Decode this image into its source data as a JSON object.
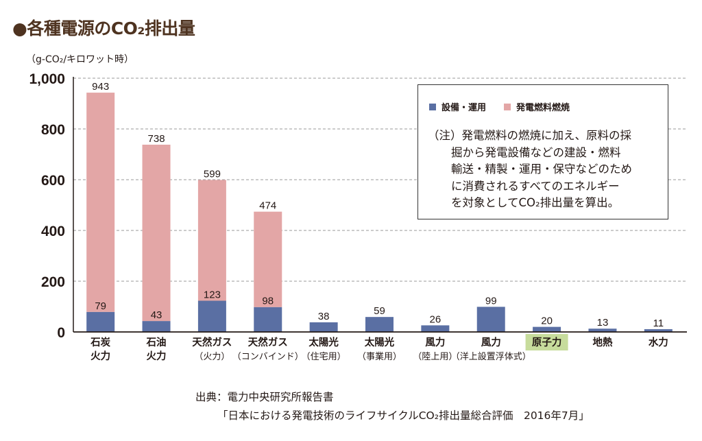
{
  "title": "●各種電源のCO₂排出量",
  "legend": {
    "items": [
      {
        "label": "設備・運用",
        "color": "#5a6fa3"
      },
      {
        "label": "発電燃料燃焼",
        "color": "#e3a6a6"
      }
    ],
    "note": [
      "（注）発電燃料の燃焼に加え、原料の採",
      "掘から発電設備などの建設・燃料",
      "輸送・精製・運用・保守などのため",
      "に消費されるすべてのエネルギー",
      "を対象としてCO₂排出量を算出。"
    ]
  },
  "source": {
    "line1": "出典：電力中央研究所報告書",
    "line2": "「日本における発電技術のライフサイクルCO₂排出量総合評価　2016年7月」"
  },
  "highlight_color": "#c7dc9c",
  "chart_data": {
    "type": "bar",
    "stacked": true,
    "title": "各種電源のCO₂排出量",
    "ylabel": "（g-CO₂/キロワット時）",
    "xlabel": "",
    "ylim": [
      0,
      1000
    ],
    "yticks": [
      0,
      200,
      400,
      600,
      800,
      1000
    ],
    "ytick_labels": [
      "0",
      "200",
      "400",
      "600",
      "800",
      "1,000"
    ],
    "grid": true,
    "legend_position": "top-right",
    "categories": [
      {
        "line1": "石炭",
        "line2": "火力",
        "highlight": false
      },
      {
        "line1": "石油",
        "line2": "火力",
        "highlight": false
      },
      {
        "line1": "天然ガス",
        "line2": "（火力）",
        "highlight": false
      },
      {
        "line1": "天然ガス",
        "line2": "（コンバインド）",
        "highlight": false
      },
      {
        "line1": "太陽光",
        "line2": "（住宅用）",
        "highlight": false
      },
      {
        "line1": "太陽光",
        "line2": "（事業用）",
        "highlight": false
      },
      {
        "line1": "風力",
        "line2": "（陸上用）",
        "highlight": false
      },
      {
        "line1": "風力",
        "line2": "（洋上設置浮体式）",
        "highlight": false
      },
      {
        "line1": "原子力",
        "line2": "",
        "highlight": true
      },
      {
        "line1": "地熱",
        "line2": "",
        "highlight": false
      },
      {
        "line1": "水力",
        "line2": "",
        "highlight": false
      }
    ],
    "series": [
      {
        "name": "設備・運用",
        "color": "#5a6fa3",
        "values": [
          79,
          43,
          123,
          98,
          38,
          59,
          26,
          99,
          20,
          13,
          11
        ]
      },
      {
        "name": "発電燃料燃焼",
        "color": "#e3a6a6",
        "values": [
          864,
          695,
          476,
          376,
          0,
          0,
          0,
          0,
          0,
          0,
          0
        ]
      }
    ],
    "totals": [
      943,
      738,
      599,
      474,
      38,
      59,
      26,
      99,
      20,
      13,
      11
    ],
    "data_labels": {
      "inner": [
        "79",
        "43",
        "123",
        "98",
        null,
        null,
        null,
        null,
        null,
        null,
        null
      ],
      "total": [
        "943",
        "738",
        "599",
        "474",
        "38",
        "59",
        "26",
        "99",
        "20",
        "13",
        "11"
      ]
    }
  }
}
